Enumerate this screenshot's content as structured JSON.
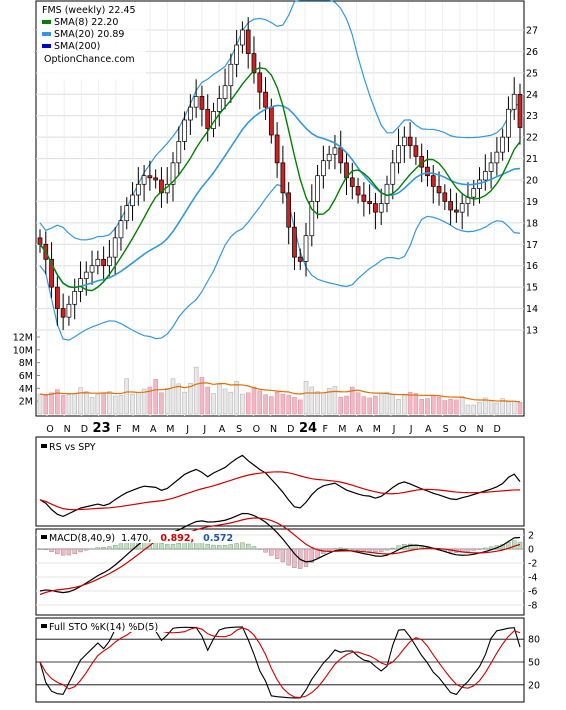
{
  "chart_data": [
    {
      "type": "candlestick",
      "title": "FMS (weekly) 22.45",
      "watermark": "OptionChance.com",
      "legend_position": "top-left",
      "grid": true,
      "x_labels": [
        "O",
        "N",
        "D",
        "23",
        "F",
        "M",
        "A",
        "M",
        "J",
        "J",
        "A",
        "S",
        "O",
        "N",
        "D",
        "24",
        "F",
        "M",
        "A",
        "M",
        "J",
        "J",
        "A",
        "S",
        "O",
        "N",
        "D"
      ],
      "ylim": [
        12,
        28
      ],
      "y_ticks": [
        13,
        14,
        15,
        16,
        17,
        18,
        19,
        20,
        21,
        22,
        23,
        24,
        25,
        26,
        27
      ],
      "legend": [
        {
          "label": "FMS (weekly) 22.45",
          "color": "#000000"
        },
        {
          "label": "SMA(8) 22.20",
          "color": "#008000"
        },
        {
          "label": "SMA(20) 20.89",
          "color": "#3399dd"
        },
        {
          "label": "SMA(200)",
          "color": "#0000cc"
        }
      ],
      "close_approx": [
        17.0,
        16.3,
        15.0,
        14.0,
        13.6,
        14.2,
        14.8,
        15.4,
        15.7,
        16.0,
        16.3,
        16.0,
        16.4,
        17.3,
        18.1,
        18.8,
        19.3,
        19.8,
        20.2,
        20.1,
        20.0,
        19.4,
        19.8,
        20.8,
        21.8,
        22.8,
        23.4,
        23.9,
        23.3,
        22.4,
        23.2,
        23.8,
        24.4,
        25.4,
        26.3,
        27.0,
        25.9,
        25.0,
        24.1,
        23.4,
        22.1,
        20.8,
        19.4,
        17.8,
        16.4,
        16.2,
        17.4,
        19.0,
        20.2,
        20.9,
        21.2,
        21.5,
        20.8,
        20.1,
        19.7,
        19.3,
        19.0,
        18.9,
        18.5,
        18.9,
        19.8,
        20.8,
        21.6,
        22.0,
        21.6,
        21.1,
        20.6,
        20.2,
        19.7,
        19.4,
        19.0,
        18.6,
        18.5,
        18.9,
        19.2,
        19.6,
        20.0,
        20.4,
        20.8,
        21.3,
        22.0,
        23.3,
        24.0,
        22.45
      ],
      "sma8_last": 22.2,
      "sma20_last": 20.89,
      "volume": {
        "ylim": [
          0,
          12000000
        ],
        "ticks": [
          "2M",
          "4M",
          "6M",
          "8M",
          "10M",
          "12M"
        ],
        "values_millions": [
          3.1,
          2.9,
          3.3,
          3.8,
          2.9,
          3.0,
          3.2,
          4.1,
          3.5,
          2.6,
          3.1,
          3.2,
          3.5,
          2.8,
          2.9,
          5.5,
          3.1,
          3.4,
          3.9,
          4.2,
          5.4,
          3.3,
          4.0,
          5.5,
          4.7,
          3.4,
          4.8,
          7.3,
          5.7,
          4.2,
          3.2,
          4.6,
          3.9,
          3.4,
          5.1,
          3.1,
          3.3,
          4.2,
          3.6,
          3.0,
          2.7,
          3.4,
          3.1,
          2.9,
          2.6,
          2.2,
          5.1,
          4.2,
          3.5,
          3.3,
          4.0,
          4.3,
          2.6,
          2.8,
          4.2,
          3.3,
          2.7,
          2.5,
          2.8,
          3.3,
          3.4,
          3.0,
          2.3,
          2.9,
          3.4,
          3.2,
          2.3,
          2.4,
          2.9,
          2.6,
          2.1,
          2.3,
          2.2,
          2.7,
          1.4,
          1.4,
          1.8,
          2.5,
          2.1,
          1.7,
          2.4,
          1.9,
          2.0,
          1.8
        ]
      }
    },
    {
      "type": "line",
      "title": "RS vs SPY",
      "legend_position": "top-left"
    },
    {
      "type": "line",
      "title": "MACD(8,40,9) 1.470, 0.892, 0.572",
      "labels": {
        "name": "MACD(8,40,9)",
        "macd": "1.470,",
        "signal": "0.892,",
        "hist": "0.572"
      },
      "ylim": [
        -9,
        3
      ],
      "y_ticks": [
        2,
        0,
        -2,
        -4,
        -6,
        -8
      ],
      "legend_position": "top-left"
    },
    {
      "type": "line",
      "title": "Full STO %K(14) %D(5)",
      "ylim": [
        0,
        100
      ],
      "y_ticks": [
        80,
        50,
        20
      ],
      "legend_position": "top-left"
    }
  ]
}
